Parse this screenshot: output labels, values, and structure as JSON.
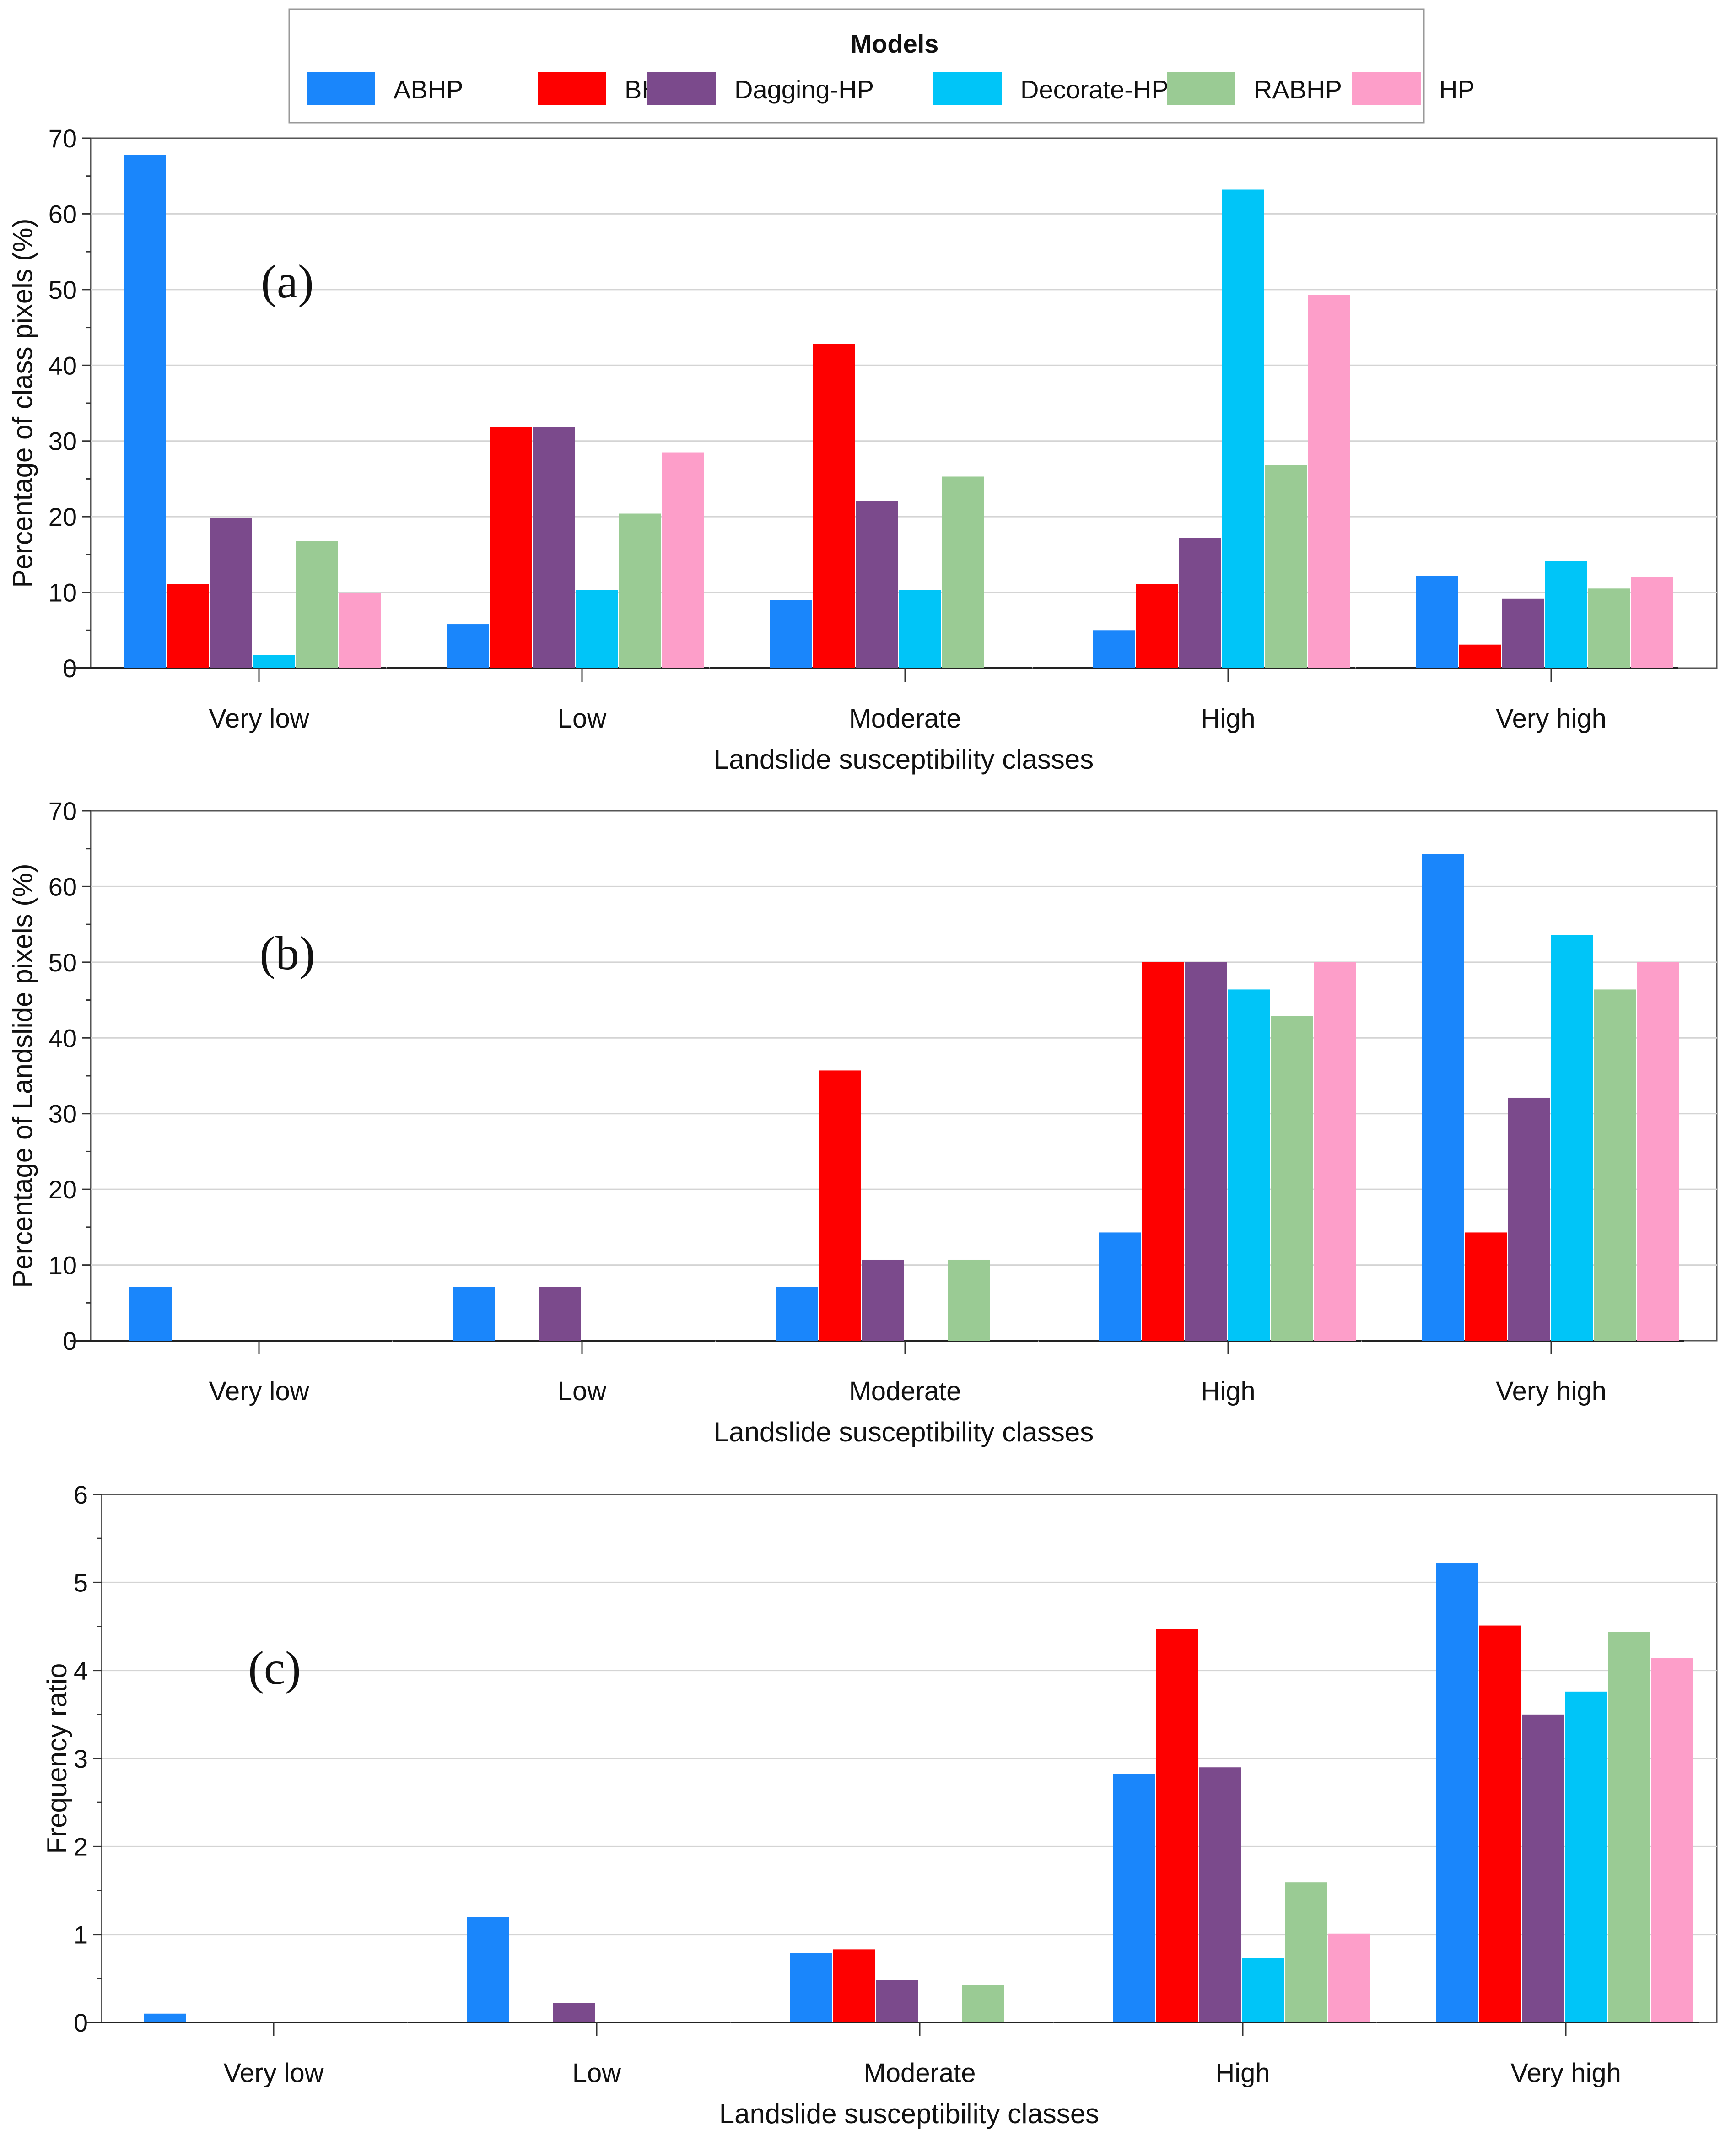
{
  "legend": {
    "title": "Models",
    "entries": [
      {
        "name": "ABHP",
        "color": "#1a86fb"
      },
      {
        "name": "BHP",
        "color": "#fe0000"
      },
      {
        "name": "Dagging-HP",
        "color": "#7b4a8c"
      },
      {
        "name": "Decorate-HP",
        "color": "#00c5f8"
      },
      {
        "name": "RABHP",
        "color": "#9acb94"
      },
      {
        "name": "HP",
        "color": "#fd9ec9"
      }
    ]
  },
  "chart_data": [
    {
      "type": "bar",
      "panel": "(a)",
      "xlabel": "Landslide susceptibility classes",
      "ylabel": "Percentage of class pixels (%)",
      "ylim": [
        0,
        70
      ],
      "yticks": [
        0,
        10,
        20,
        30,
        40,
        50,
        60,
        70
      ],
      "categories": [
        "Very low",
        "Low",
        "Moderate",
        "High",
        "Very high"
      ],
      "series": [
        {
          "name": "ABHP",
          "values": [
            67.8,
            5.8,
            9.0,
            5.0,
            12.2
          ]
        },
        {
          "name": "BHP",
          "values": [
            11.1,
            31.8,
            42.8,
            11.1,
            3.1
          ]
        },
        {
          "name": "Dagging-HP",
          "values": [
            19.8,
            31.8,
            22.1,
            17.2,
            9.2
          ]
        },
        {
          "name": "Decorate-HP",
          "values": [
            1.7,
            10.3,
            10.3,
            63.2,
            14.2
          ]
        },
        {
          "name": "RABHP",
          "values": [
            16.8,
            20.4,
            25.3,
            26.8,
            10.5
          ]
        },
        {
          "name": "HP",
          "values": [
            9.9,
            28.5,
            0,
            49.3,
            12.0
          ]
        }
      ]
    },
    {
      "type": "bar",
      "panel": "(b)",
      "xlabel": "Landslide susceptibility classes",
      "ylabel": "Percentage of Landslide pixels (%)",
      "ylim": [
        0,
        70
      ],
      "yticks": [
        0,
        10,
        20,
        30,
        40,
        50,
        60,
        70
      ],
      "categories": [
        "Very low",
        "Low",
        "Moderate",
        "High",
        "Very high"
      ],
      "series": [
        {
          "name": "ABHP",
          "values": [
            7.1,
            7.1,
            7.1,
            14.3,
            64.3
          ]
        },
        {
          "name": "BHP",
          "values": [
            0,
            0,
            35.7,
            50.0,
            14.3
          ]
        },
        {
          "name": "Dagging-HP",
          "values": [
            0,
            7.1,
            10.7,
            50.0,
            32.1
          ]
        },
        {
          "name": "Decorate-HP",
          "values": [
            0,
            0,
            0,
            46.4,
            53.6
          ]
        },
        {
          "name": "RABHP",
          "values": [
            0,
            0,
            10.7,
            42.9,
            46.4
          ]
        },
        {
          "name": "HP",
          "values": [
            0,
            0,
            0,
            50.0,
            50.0
          ]
        }
      ]
    },
    {
      "type": "bar",
      "panel": "(c)",
      "xlabel": "Landslide susceptibility classes",
      "ylabel": "Frequency ratio",
      "ylim": [
        0,
        6
      ],
      "yticks": [
        0,
        1,
        2,
        3,
        4,
        5,
        6
      ],
      "categories": [
        "Very low",
        "Low",
        "Moderate",
        "High",
        "Very high"
      ],
      "series": [
        {
          "name": "ABHP",
          "values": [
            0.1,
            1.2,
            0.79,
            2.82,
            5.22
          ]
        },
        {
          "name": "BHP",
          "values": [
            0,
            0,
            0.83,
            4.47,
            4.51
          ]
        },
        {
          "name": "Dagging-HP",
          "values": [
            0,
            0.22,
            0.48,
            2.9,
            3.5
          ]
        },
        {
          "name": "Decorate-HP",
          "values": [
            0,
            0,
            0,
            0.73,
            3.76
          ]
        },
        {
          "name": "RABHP",
          "values": [
            0,
            0,
            0.43,
            1.59,
            4.44
          ]
        },
        {
          "name": "HP",
          "values": [
            0,
            0,
            0,
            1.01,
            4.14
          ]
        }
      ]
    }
  ]
}
